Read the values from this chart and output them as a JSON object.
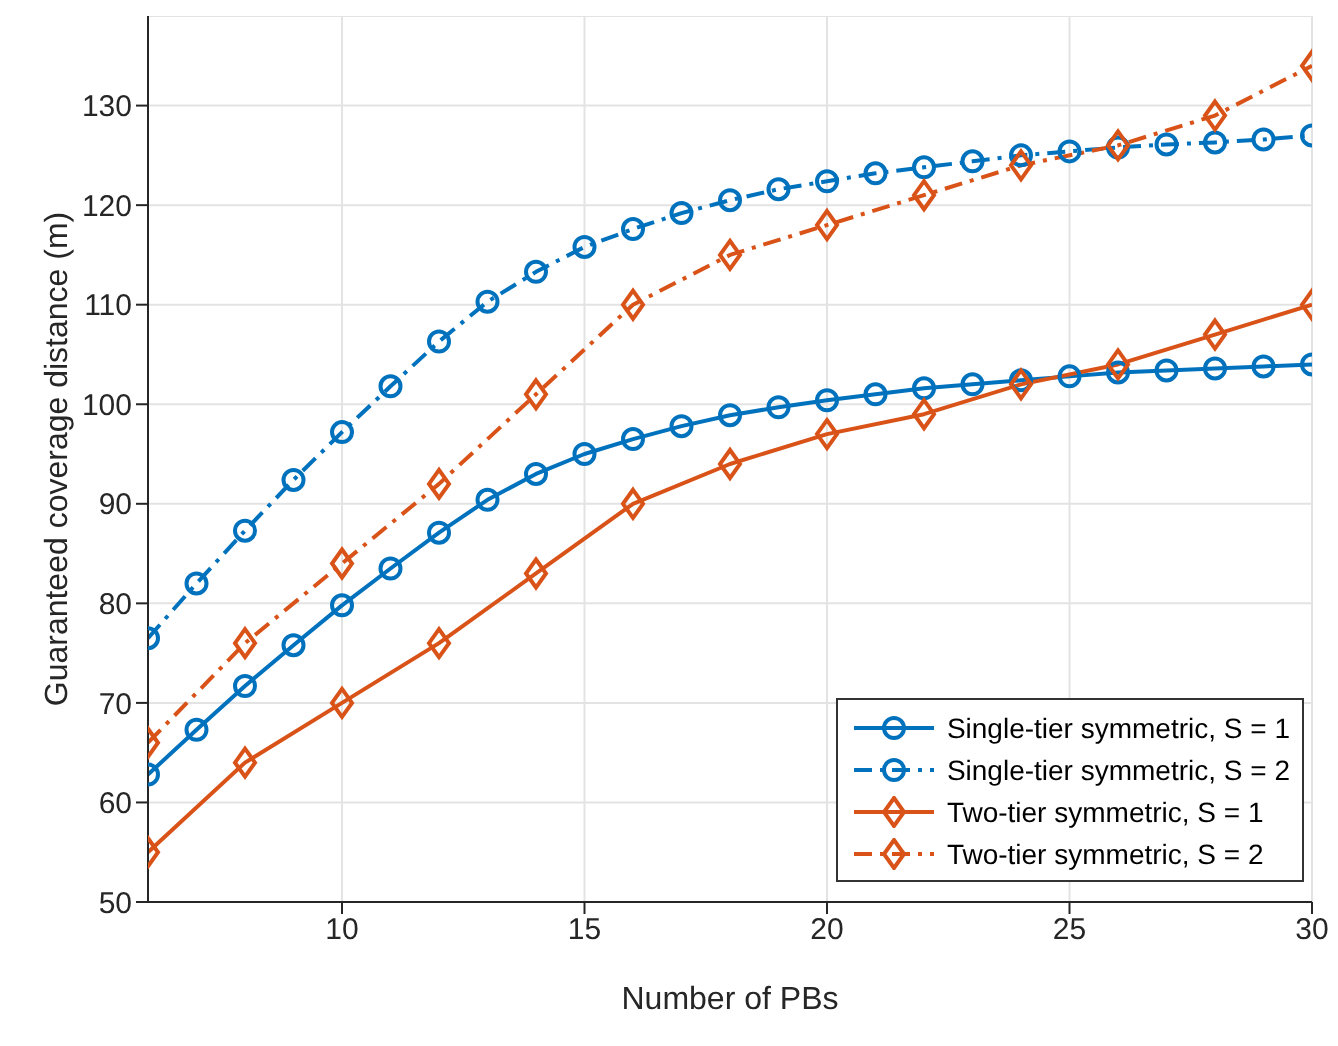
{
  "chart_data": {
    "type": "line",
    "xlabel": "Number of PBs",
    "ylabel": "Guaranteed coverage distance (m)",
    "xlim": [
      6,
      30
    ],
    "xticks": [
      10,
      15,
      20,
      25,
      30
    ],
    "ylim": [
      50,
      139
    ],
    "yticks": [
      50,
      60,
      70,
      80,
      90,
      100,
      110,
      120,
      130
    ],
    "grid": true,
    "legend": "bottom right",
    "series": [
      {
        "name": "Single-tier symmetric, S = 1",
        "color": "#0072bd",
        "marker": "circle",
        "line_style": "solid",
        "x": [
          6,
          7,
          8,
          9,
          10,
          11,
          12,
          13,
          14,
          15,
          16,
          17,
          18,
          19,
          20,
          21,
          22,
          23,
          24,
          25,
          26,
          27,
          28,
          29,
          30
        ],
        "values": [
          62.8,
          67.3,
          71.7,
          75.8,
          79.8,
          83.5,
          87.1,
          90.4,
          93,
          95,
          96.5,
          97.8,
          98.9,
          99.7,
          100.4,
          101,
          101.6,
          102,
          102.4,
          102.8,
          103.2,
          103.4,
          103.6,
          103.8,
          104
        ]
      },
      {
        "name": "Single-tier symmetric, S = 2",
        "color": "#0072bd",
        "marker": "circle",
        "line_style": "dashed",
        "x": [
          6,
          7,
          8,
          9,
          10,
          11,
          12,
          13,
          14,
          15,
          16,
          17,
          18,
          19,
          20,
          21,
          22,
          23,
          24,
          25,
          26,
          27,
          28,
          29,
          30
        ],
        "values": [
          76.5,
          82,
          87.3,
          92.4,
          97.2,
          101.8,
          106.3,
          110.3,
          113.3,
          115.8,
          117.6,
          119.2,
          120.5,
          121.6,
          122.4,
          123.2,
          123.8,
          124.4,
          125,
          125.4,
          125.8,
          126.1,
          126.3,
          126.6,
          127
        ]
      },
      {
        "name": "Two-tier symmetric, S = 1",
        "color": "#d95319",
        "marker": "diamond",
        "line_style": "solid",
        "x": [
          6,
          8,
          10,
          12,
          14,
          16,
          18,
          20,
          22,
          24,
          26,
          28,
          30
        ],
        "values": [
          55,
          64,
          70,
          76,
          83,
          90,
          94,
          97,
          99,
          102,
          104,
          107,
          110
        ]
      },
      {
        "name": "Two-tier symmetric, S = 2",
        "color": "#d95319",
        "marker": "diamond",
        "line_style": "dashed",
        "x": [
          6,
          8,
          10,
          12,
          14,
          16,
          18,
          20,
          22,
          24,
          26,
          28,
          30
        ],
        "values": [
          66,
          76,
          84,
          92,
          101,
          110,
          115,
          118,
          121,
          124,
          126,
          129,
          134
        ]
      }
    ]
  }
}
